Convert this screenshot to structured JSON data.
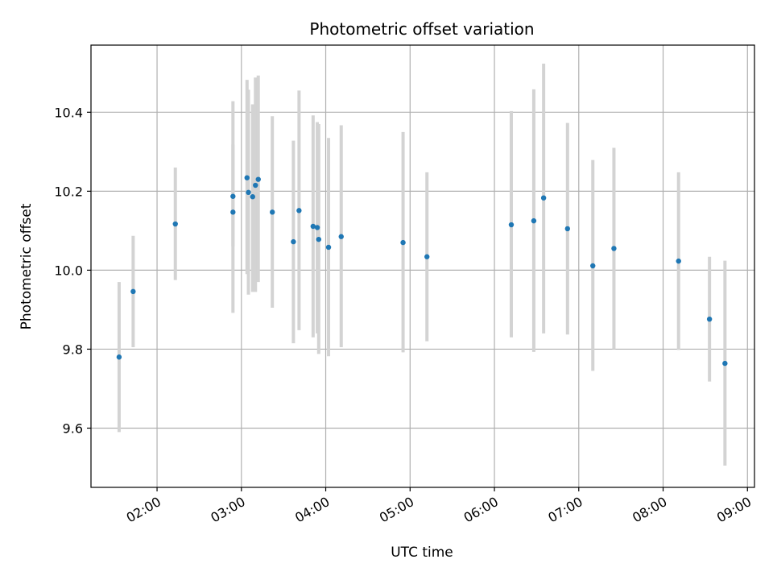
{
  "chart_data": {
    "type": "scatter",
    "title": "Photometric offset variation",
    "xlabel": "UTC time",
    "ylabel": "Photometric offset",
    "x_axis": {
      "kind": "time",
      "range": [
        "01:13",
        "09:05"
      ],
      "ticks": [
        "02:00",
        "03:00",
        "04:00",
        "05:00",
        "06:00",
        "07:00",
        "08:00",
        "09:00"
      ]
    },
    "y_axis": {
      "range": [
        9.45,
        10.57
      ],
      "ticks": [
        "9.6",
        "9.8",
        "10.0",
        "10.2",
        "10.4"
      ]
    },
    "grid": true,
    "colors": {
      "points": "#1f77b4",
      "errorbars": "#d3d3d3",
      "grid": "#b0b0b0"
    },
    "points": [
      {
        "t": "01:33",
        "y": 9.78,
        "yerr_low": 9.59,
        "yerr_high": 9.97
      },
      {
        "t": "01:43",
        "y": 9.946,
        "yerr_low": 9.805,
        "yerr_high": 10.087
      },
      {
        "t": "02:13",
        "y": 10.117,
        "yerr_low": 9.975,
        "yerr_high": 10.26
      },
      {
        "t": "02:54",
        "y": 10.187,
        "yerr_low": 10.06,
        "yerr_high": 10.318
      },
      {
        "t": "02:54",
        "y": 10.147,
        "yerr_low": 9.892,
        "yerr_high": 10.428
      },
      {
        "t": "03:04",
        "y": 10.234,
        "yerr_low": 9.99,
        "yerr_high": 10.482
      },
      {
        "t": "03:05",
        "y": 10.197,
        "yerr_low": 9.938,
        "yerr_high": 10.457
      },
      {
        "t": "03:08",
        "y": 10.186,
        "yerr_low": 9.945,
        "yerr_high": 10.42
      },
      {
        "t": "03:10",
        "y": 10.215,
        "yerr_low": 9.945,
        "yerr_high": 10.488
      },
      {
        "t": "03:12",
        "y": 10.23,
        "yerr_low": 9.97,
        "yerr_high": 10.493
      },
      {
        "t": "03:22",
        "y": 10.147,
        "yerr_low": 9.905,
        "yerr_high": 10.39
      },
      {
        "t": "03:37",
        "y": 10.072,
        "yerr_low": 9.815,
        "yerr_high": 10.328
      },
      {
        "t": "03:41",
        "y": 10.151,
        "yerr_low": 9.848,
        "yerr_high": 10.455
      },
      {
        "t": "03:51",
        "y": 10.111,
        "yerr_low": 9.83,
        "yerr_high": 10.392
      },
      {
        "t": "03:54",
        "y": 10.108,
        "yerr_low": 9.84,
        "yerr_high": 10.375
      },
      {
        "t": "03:55",
        "y": 10.078,
        "yerr_low": 9.788,
        "yerr_high": 10.37
      },
      {
        "t": "04:02",
        "y": 10.058,
        "yerr_low": 9.782,
        "yerr_high": 10.335
      },
      {
        "t": "04:11",
        "y": 10.085,
        "yerr_low": 9.805,
        "yerr_high": 10.367
      },
      {
        "t": "04:55",
        "y": 10.07,
        "yerr_low": 9.792,
        "yerr_high": 10.35
      },
      {
        "t": "05:12",
        "y": 10.034,
        "yerr_low": 9.82,
        "yerr_high": 10.248
      },
      {
        "t": "06:12",
        "y": 10.115,
        "yerr_low": 9.83,
        "yerr_high": 10.403
      },
      {
        "t": "06:28",
        "y": 10.125,
        "yerr_low": 9.793,
        "yerr_high": 10.458
      },
      {
        "t": "06:35",
        "y": 10.183,
        "yerr_low": 9.84,
        "yerr_high": 10.523
      },
      {
        "t": "06:52",
        "y": 10.105,
        "yerr_low": 9.837,
        "yerr_high": 10.373
      },
      {
        "t": "07:10",
        "y": 10.011,
        "yerr_low": 9.745,
        "yerr_high": 10.279
      },
      {
        "t": "07:25",
        "y": 10.055,
        "yerr_low": 9.8,
        "yerr_high": 10.31
      },
      {
        "t": "08:11",
        "y": 10.023,
        "yerr_low": 9.798,
        "yerr_high": 10.248
      },
      {
        "t": "08:33",
        "y": 9.876,
        "yerr_low": 9.718,
        "yerr_high": 10.034
      },
      {
        "t": "08:44",
        "y": 9.764,
        "yerr_low": 9.505,
        "yerr_high": 10.024
      }
    ]
  }
}
